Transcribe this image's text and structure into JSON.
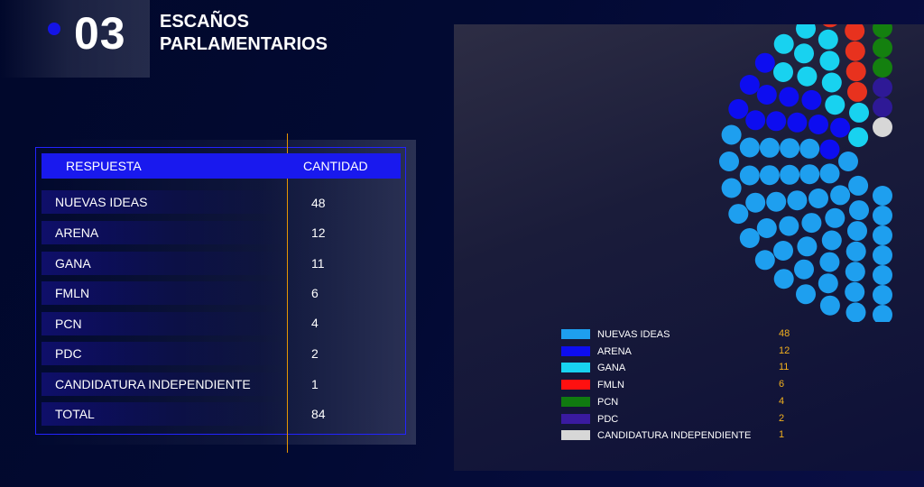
{
  "header": {
    "number": "03",
    "title": "ESCAÑOS PARLAMENTARIOS"
  },
  "table": {
    "col1": "RESPUESTA",
    "col2": "CANTIDAD",
    "rows": [
      {
        "label": "NUEVAS IDEAS",
        "value": "48"
      },
      {
        "label": "ARENA",
        "value": "12"
      },
      {
        "label": "GANA",
        "value": "11"
      },
      {
        "label": "FMLN",
        "value": "6"
      },
      {
        "label": "PCN",
        "value": "4"
      },
      {
        "label": "PDC",
        "value": "2"
      },
      {
        "label": "CANDIDATURA INDEPENDIENTE",
        "value": "1"
      },
      {
        "label": "TOTAL",
        "value": "84"
      }
    ]
  },
  "chart_data": {
    "type": "parliament",
    "total_seats": 84,
    "series": [
      {
        "name": "NUEVAS IDEAS",
        "value": 48,
        "color": "#1e9fef"
      },
      {
        "name": "ARENA",
        "value": 12,
        "color": "#0d0df0"
      },
      {
        "name": "GANA",
        "value": 11,
        "color": "#18d2f0"
      },
      {
        "name": "FMLN",
        "value": 6,
        "color": "#e8321e"
      },
      {
        "name": "PCN",
        "value": 4,
        "color": "#14800f"
      },
      {
        "name": "PDC",
        "value": 2,
        "color": "#2e1996"
      },
      {
        "name": "CANDIDATURA INDEPENDIENTE",
        "value": 1,
        "color": "#d7d7d7"
      }
    ],
    "legend": {
      "position": "bottom",
      "items": [
        {
          "label": "NUEVAS IDEAS",
          "value": "48",
          "color": "#1e9fef"
        },
        {
          "label": "ARENA",
          "value": "12",
          "color": "#0d0df0"
        },
        {
          "label": "GANA",
          "value": "11",
          "color": "#18d2f0"
        },
        {
          "label": "FMLN",
          "value": "6",
          "color": "#ff1010"
        },
        {
          "label": "PCN",
          "value": "4",
          "color": "#107a10"
        },
        {
          "label": "PDC",
          "value": "2",
          "color": "#3a1aa0"
        },
        {
          "label": "CANDIDATURA INDEPENDIENTE",
          "value": "1",
          "color": "#d7d7d7"
        }
      ]
    }
  }
}
